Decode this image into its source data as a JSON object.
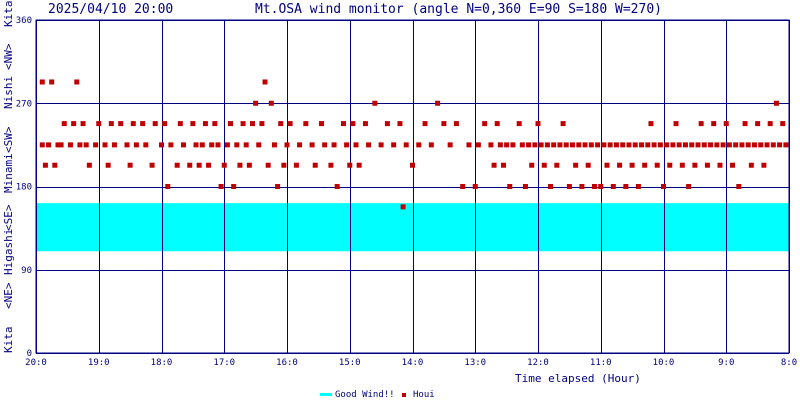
{
  "header": {
    "datetime": "2025/04/10 20:00",
    "title": "Mt.OSA wind monitor (angle N=0,360 E=90 S=180 W=270)"
  },
  "chart_data": {
    "type": "scatter",
    "title": "Mt.OSA wind monitor (angle N=0,360 E=90 S=180 W=270)",
    "xlabel": "Time elapsed (Hour)",
    "ylabel": "Kita <NE> Higashi <SE> Minami <SW> Nishi <NW> Kita",
    "y_axis_segments": [
      "Kita",
      "<NE>",
      "Higashi",
      "<SE>",
      "Minami",
      "<SW>",
      "Nishi",
      "<NW>",
      "Kita"
    ],
    "ylim": [
      0,
      360
    ],
    "yticks": [
      "0",
      "90",
      "180",
      "270",
      "360"
    ],
    "xlim": [
      0,
      12
    ],
    "xticks": [
      "20:0",
      "19:0",
      "18:0",
      "17:0",
      "16:0",
      "15:0",
      "14:0",
      "13:0",
      "12:0",
      "11:0",
      "10:0",
      "9:0",
      "8:0"
    ],
    "good_wind_band": [
      110,
      162
    ],
    "colors": {
      "band": "#00ffff",
      "points": "#c00000",
      "grid": "#000080",
      "axis_text": "#000080"
    },
    "legend": {
      "placement": "bottom-center",
      "entries": [
        {
          "label": "Good Wind!!",
          "color": "#00ffff"
        },
        {
          "label": "Houi",
          "color": "#c00000"
        }
      ]
    },
    "series": [
      {
        "name": "Houi",
        "points": [
          [
            0.1,
            225
          ],
          [
            0.1,
            293
          ],
          [
            0.15,
            203
          ],
          [
            0.2,
            225
          ],
          [
            0.25,
            293
          ],
          [
            0.3,
            203
          ],
          [
            0.35,
            225
          ],
          [
            0.4,
            225
          ],
          [
            0.45,
            248
          ],
          [
            0.55,
            225
          ],
          [
            0.6,
            248
          ],
          [
            0.65,
            293
          ],
          [
            0.7,
            225
          ],
          [
            0.75,
            248
          ],
          [
            0.8,
            225
          ],
          [
            0.85,
            203
          ],
          [
            0.95,
            225
          ],
          [
            1.0,
            248
          ],
          [
            1.1,
            225
          ],
          [
            1.15,
            203
          ],
          [
            1.2,
            248
          ],
          [
            1.25,
            225
          ],
          [
            1.35,
            248
          ],
          [
            1.45,
            225
          ],
          [
            1.5,
            203
          ],
          [
            1.55,
            248
          ],
          [
            1.6,
            225
          ],
          [
            1.7,
            248
          ],
          [
            1.75,
            225
          ],
          [
            1.85,
            203
          ],
          [
            1.9,
            248
          ],
          [
            2.0,
            225
          ],
          [
            2.05,
            248
          ],
          [
            2.1,
            180
          ],
          [
            2.15,
            225
          ],
          [
            2.25,
            203
          ],
          [
            2.3,
            248
          ],
          [
            2.35,
            225
          ],
          [
            2.45,
            203
          ],
          [
            2.5,
            248
          ],
          [
            2.55,
            225
          ],
          [
            2.6,
            203
          ],
          [
            2.65,
            225
          ],
          [
            2.7,
            248
          ],
          [
            2.75,
            203
          ],
          [
            2.8,
            225
          ],
          [
            2.85,
            248
          ],
          [
            2.9,
            225
          ],
          [
            2.95,
            180
          ],
          [
            3.0,
            203
          ],
          [
            3.05,
            225
          ],
          [
            3.1,
            248
          ],
          [
            3.15,
            180
          ],
          [
            3.2,
            225
          ],
          [
            3.25,
            203
          ],
          [
            3.3,
            248
          ],
          [
            3.35,
            225
          ],
          [
            3.4,
            203
          ],
          [
            3.45,
            248
          ],
          [
            3.5,
            270
          ],
          [
            3.55,
            225
          ],
          [
            3.6,
            248
          ],
          [
            3.65,
            293
          ],
          [
            3.7,
            203
          ],
          [
            3.75,
            270
          ],
          [
            3.8,
            225
          ],
          [
            3.85,
            180
          ],
          [
            3.9,
            248
          ],
          [
            3.95,
            203
          ],
          [
            4.0,
            225
          ],
          [
            4.05,
            248
          ],
          [
            4.15,
            203
          ],
          [
            4.2,
            225
          ],
          [
            4.3,
            248
          ],
          [
            4.4,
            225
          ],
          [
            4.45,
            203
          ],
          [
            4.55,
            248
          ],
          [
            4.6,
            225
          ],
          [
            4.7,
            203
          ],
          [
            4.75,
            225
          ],
          [
            4.8,
            180
          ],
          [
            4.9,
            248
          ],
          [
            4.95,
            225
          ],
          [
            5.0,
            203
          ],
          [
            5.05,
            248
          ],
          [
            5.1,
            225
          ],
          [
            5.15,
            203
          ],
          [
            5.25,
            248
          ],
          [
            5.3,
            225
          ],
          [
            5.4,
            270
          ],
          [
            5.5,
            225
          ],
          [
            5.6,
            248
          ],
          [
            5.7,
            225
          ],
          [
            5.8,
            248
          ],
          [
            5.85,
            158
          ],
          [
            5.9,
            225
          ],
          [
            6.0,
            203
          ],
          [
            6.1,
            225
          ],
          [
            6.2,
            248
          ],
          [
            6.3,
            225
          ],
          [
            6.4,
            270
          ],
          [
            6.5,
            248
          ],
          [
            6.6,
            225
          ],
          [
            6.7,
            248
          ],
          [
            6.8,
            180
          ],
          [
            6.9,
            225
          ],
          [
            7.0,
            180
          ],
          [
            7.05,
            225
          ],
          [
            7.15,
            248
          ],
          [
            7.25,
            225
          ],
          [
            7.3,
            203
          ],
          [
            7.35,
            248
          ],
          [
            7.4,
            225
          ],
          [
            7.45,
            203
          ],
          [
            7.5,
            225
          ],
          [
            7.55,
            180
          ],
          [
            7.6,
            225
          ],
          [
            7.7,
            248
          ],
          [
            7.75,
            225
          ],
          [
            7.8,
            180
          ],
          [
            7.85,
            225
          ],
          [
            7.9,
            203
          ],
          [
            7.95,
            225
          ],
          [
            8.0,
            248
          ],
          [
            8.05,
            225
          ],
          [
            8.1,
            203
          ],
          [
            8.15,
            225
          ],
          [
            8.2,
            180
          ],
          [
            8.25,
            225
          ],
          [
            8.3,
            203
          ],
          [
            8.35,
            225
          ],
          [
            8.4,
            248
          ],
          [
            8.45,
            225
          ],
          [
            8.5,
            180
          ],
          [
            8.55,
            225
          ],
          [
            8.6,
            203
          ],
          [
            8.65,
            225
          ],
          [
            8.7,
            180
          ],
          [
            8.75,
            225
          ],
          [
            8.8,
            203
          ],
          [
            8.85,
            225
          ],
          [
            8.9,
            180
          ],
          [
            8.95,
            225
          ],
          [
            9.0,
            180
          ],
          [
            9.05,
            225
          ],
          [
            9.1,
            203
          ],
          [
            9.15,
            225
          ],
          [
            9.2,
            180
          ],
          [
            9.25,
            225
          ],
          [
            9.3,
            203
          ],
          [
            9.35,
            225
          ],
          [
            9.4,
            180
          ],
          [
            9.45,
            225
          ],
          [
            9.5,
            203
          ],
          [
            9.55,
            225
          ],
          [
            9.6,
            180
          ],
          [
            9.65,
            225
          ],
          [
            9.7,
            203
          ],
          [
            9.75,
            225
          ],
          [
            9.8,
            248
          ],
          [
            9.85,
            225
          ],
          [
            9.9,
            203
          ],
          [
            9.95,
            225
          ],
          [
            10.0,
            180
          ],
          [
            10.05,
            225
          ],
          [
            10.1,
            203
          ],
          [
            10.15,
            225
          ],
          [
            10.2,
            248
          ],
          [
            10.25,
            225
          ],
          [
            10.3,
            203
          ],
          [
            10.35,
            225
          ],
          [
            10.4,
            180
          ],
          [
            10.45,
            225
          ],
          [
            10.5,
            203
          ],
          [
            10.55,
            225
          ],
          [
            10.6,
            248
          ],
          [
            10.65,
            225
          ],
          [
            10.7,
            203
          ],
          [
            10.75,
            225
          ],
          [
            10.8,
            248
          ],
          [
            10.85,
            225
          ],
          [
            10.9,
            203
          ],
          [
            10.95,
            225
          ],
          [
            11.0,
            248
          ],
          [
            11.05,
            225
          ],
          [
            11.1,
            203
          ],
          [
            11.15,
            225
          ],
          [
            11.2,
            180
          ],
          [
            11.25,
            225
          ],
          [
            11.3,
            248
          ],
          [
            11.35,
            225
          ],
          [
            11.4,
            203
          ],
          [
            11.45,
            225
          ],
          [
            11.5,
            248
          ],
          [
            11.55,
            225
          ],
          [
            11.6,
            203
          ],
          [
            11.65,
            225
          ],
          [
            11.7,
            248
          ],
          [
            11.75,
            225
          ],
          [
            11.8,
            270
          ],
          [
            11.85,
            225
          ],
          [
            11.9,
            248
          ],
          [
            11.95,
            225
          ]
        ]
      }
    ]
  }
}
